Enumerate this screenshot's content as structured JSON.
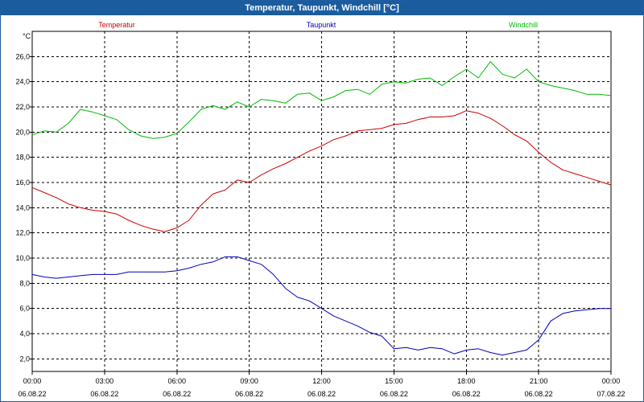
{
  "window": {
    "title": "Temperatur, Taupunkt, Windchill [°C]"
  },
  "chart_data": {
    "type": "line",
    "title": "Temperatur, Taupunkt, Windchill [°C]",
    "ylabel": "°C",
    "ylim": [
      1,
      28
    ],
    "yticks": [
      2,
      4,
      6,
      8,
      10,
      12,
      14,
      16,
      18,
      20,
      22,
      24,
      26
    ],
    "ytick_labels": [
      "2,0",
      "4,0",
      "6,0",
      "8,0",
      "10,0",
      "12,0",
      "14,0",
      "16,0",
      "18,0",
      "20,0",
      "22,0",
      "24,0",
      "26,0"
    ],
    "xlim": [
      0,
      24
    ],
    "xticks": [
      0,
      3,
      6,
      9,
      12,
      15,
      18,
      21,
      24
    ],
    "xtick_times": [
      "00:00",
      "03:00",
      "06:00",
      "09:00",
      "12:00",
      "15:00",
      "18:00",
      "21:00",
      "00:00"
    ],
    "xtick_dates": [
      "06.08.22",
      "06.08.22",
      "06.08.22",
      "06.08.22",
      "06.08.22",
      "06.08.22",
      "06.08.22",
      "06.08.22",
      "07.08.22"
    ],
    "grid": true,
    "legend_position": "top",
    "series": [
      {
        "name": "Temperatur",
        "color": "#cc0000",
        "x": [
          0,
          0.5,
          1,
          1.5,
          2,
          2.5,
          3,
          3.5,
          4,
          4.5,
          5,
          5.5,
          6,
          6.5,
          7,
          7.5,
          8,
          8.5,
          9,
          9.5,
          10,
          10.5,
          11,
          11.5,
          12,
          12.5,
          13,
          13.5,
          14,
          14.5,
          15,
          15.5,
          16,
          16.5,
          17,
          17.5,
          18,
          18.5,
          19,
          19.5,
          20,
          20.5,
          21,
          21.5,
          22,
          22.5,
          23,
          23.5,
          24
        ],
        "values": [
          15.6,
          15.2,
          14.8,
          14.3,
          14.0,
          13.8,
          13.7,
          13.5,
          13.0,
          12.6,
          12.3,
          12.1,
          12.4,
          13.0,
          14.2,
          15.1,
          15.4,
          16.2,
          16.0,
          16.6,
          17.1,
          17.5,
          18.0,
          18.5,
          18.9,
          19.4,
          19.7,
          20.1,
          20.2,
          20.3,
          20.6,
          20.7,
          21.0,
          21.2,
          21.2,
          21.3,
          21.7,
          21.5,
          21.1,
          20.5,
          19.8,
          19.3,
          18.4,
          17.6,
          17.0,
          16.7,
          16.4,
          16.1,
          15.8
        ]
      },
      {
        "name": "Taupunkt",
        "color": "#0000bb",
        "x": [
          0,
          0.5,
          1,
          1.5,
          2,
          2.5,
          3,
          3.5,
          4,
          4.5,
          5,
          5.5,
          6,
          6.5,
          7,
          7.5,
          8,
          8.5,
          9,
          9.5,
          10,
          10.5,
          11,
          11.5,
          12,
          12.5,
          13,
          13.5,
          14,
          14.5,
          15,
          15.5,
          16,
          16.5,
          17,
          17.5,
          18,
          18.5,
          19,
          19.5,
          20,
          20.5,
          21,
          21.5,
          22,
          22.5,
          23,
          23.5,
          24
        ],
        "values": [
          8.7,
          8.5,
          8.4,
          8.5,
          8.6,
          8.7,
          8.7,
          8.7,
          8.9,
          8.9,
          8.9,
          8.9,
          9.0,
          9.2,
          9.5,
          9.7,
          10.1,
          10.1,
          9.8,
          9.5,
          8.7,
          7.6,
          6.9,
          6.6,
          6.0,
          5.4,
          5.0,
          4.6,
          4.1,
          3.8,
          2.8,
          2.9,
          2.7,
          2.9,
          2.8,
          2.4,
          2.7,
          2.8,
          2.5,
          2.3,
          2.5,
          2.7,
          3.5,
          5.0,
          5.6,
          5.8,
          5.9,
          6.0,
          6.0
        ]
      },
      {
        "name": "Windchill",
        "color": "#00bb00",
        "x": [
          0,
          0.5,
          1,
          1.5,
          2,
          2.5,
          3,
          3.5,
          4,
          4.5,
          5,
          5.5,
          6,
          6.5,
          7,
          7.5,
          8,
          8.5,
          9,
          9.5,
          10,
          10.5,
          11,
          11.5,
          12,
          12.5,
          13,
          13.5,
          14,
          14.5,
          15,
          15.5,
          16,
          16.5,
          17,
          17.5,
          18,
          18.5,
          19,
          19.5,
          20,
          20.5,
          21,
          21.5,
          22,
          22.5,
          23,
          23.5,
          24
        ],
        "values": [
          19.8,
          20.1,
          20.0,
          20.7,
          21.8,
          21.6,
          21.3,
          21.0,
          20.2,
          19.7,
          19.5,
          19.6,
          19.9,
          20.8,
          21.8,
          22.1,
          21.8,
          22.4,
          22.0,
          22.6,
          22.5,
          22.3,
          23.0,
          23.1,
          22.5,
          22.8,
          23.3,
          23.4,
          23.0,
          23.8,
          24.0,
          23.9,
          24.2,
          24.3,
          23.7,
          24.4,
          25.0,
          24.3,
          25.6,
          24.6,
          24.3,
          25.0,
          24.0,
          23.7,
          23.5,
          23.3,
          23.0,
          23.0,
          22.9
        ]
      }
    ]
  }
}
